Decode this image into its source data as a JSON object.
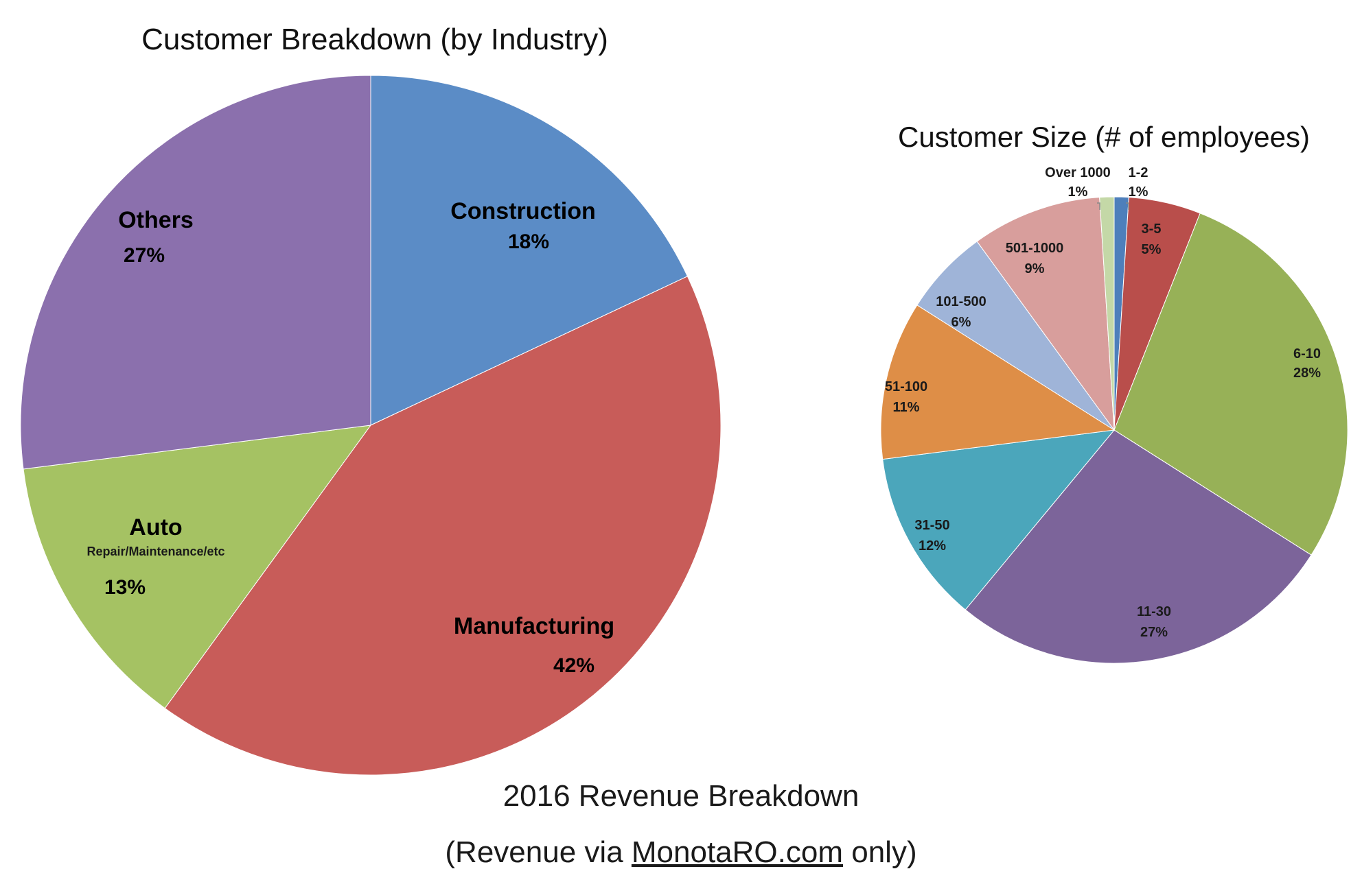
{
  "chart_data": [
    {
      "type": "pie",
      "title": "Customer Breakdown (by Industry)",
      "categories": [
        "Construction",
        "Manufacturing",
        "Auto",
        "Others"
      ],
      "sublabels": [
        "",
        "",
        "Repair/Maintenance/etc",
        ""
      ],
      "values": [
        18,
        42,
        13,
        27
      ],
      "value_labels": [
        "18%",
        "42%",
        "13%",
        "27%"
      ],
      "colors": [
        "#5B8CC6",
        "#C85C59",
        "#A5C263",
        "#8B70AD"
      ],
      "start": "12 o'clock",
      "direction": "clockwise",
      "legend": "none"
    },
    {
      "type": "pie",
      "title": "Customer Size (# of employees)",
      "categories": [
        "1-2",
        "3-5",
        "6-10",
        "11-30",
        "31-50",
        "51-100",
        "101-500",
        "501-1000",
        "Over 1000"
      ],
      "values": [
        1,
        5,
        28,
        27,
        12,
        11,
        6,
        9,
        1
      ],
      "value_labels": [
        "1%",
        "5%",
        "28%",
        "27%",
        "12%",
        "11%",
        "6%",
        "9%",
        "1%"
      ],
      "colors": [
        "#4E7FBB",
        "#B94E4B",
        "#97B157",
        "#7C649A",
        "#4BA6BB",
        "#DE8E47",
        "#9FB4D8",
        "#D89E9C",
        "#C4D8A7"
      ],
      "start": "12 o'clock",
      "direction": "clockwise",
      "legend": "none"
    }
  ],
  "caption": {
    "line1": "2016 Revenue Breakdown",
    "line2_prefix": "(Revenue via ",
    "line2_link": "MonotaRO.com",
    "line2_suffix": " only)"
  }
}
